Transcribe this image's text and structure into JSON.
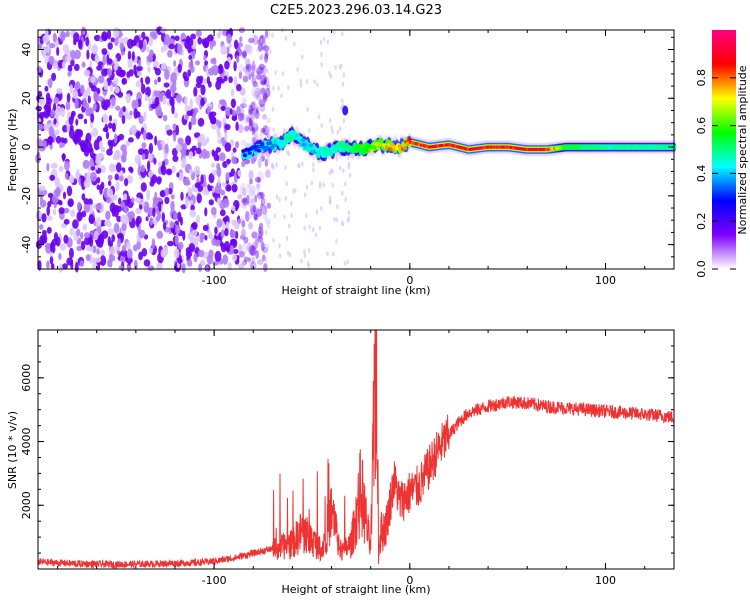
{
  "title": "C2E5.2023.296.03.14.G23",
  "chart_data": [
    {
      "type": "heatmap",
      "xlabel": "Height of straight line (km)",
      "ylabel": "Frequency (Hz)",
      "xlim": [
        -190,
        135
      ],
      "ylim": [
        -50,
        48
      ],
      "xticks": [
        -100,
        0,
        100
      ],
      "yticks": [
        -40,
        -20,
        0,
        20,
        40
      ],
      "grid": false,
      "colorbar": {
        "label": "Normalized spectral amplitude",
        "range": [
          0,
          1
        ],
        "ticks": [
          "0.0",
          "0.2",
          "0.4",
          "0.6",
          "0.8"
        ],
        "colors": [
          "#ffffff",
          "#7f00ff",
          "#0000ff",
          "#00ffff",
          "#00ff00",
          "#ffff00",
          "#ff0000",
          "#ff0080"
        ]
      },
      "description_points": {
        "noise_region_x": [
          -190,
          -82
        ],
        "signal_ridge": {
          "x": [
            -85,
            -75,
            -65,
            -60,
            -55,
            -45,
            -35,
            -25,
            -15,
            -5,
            0,
            10,
            20,
            30,
            40,
            50,
            60,
            70,
            80,
            90,
            100,
            110,
            120,
            135
          ],
          "freq": [
            -3,
            0,
            2,
            5,
            2,
            -3,
            0,
            -1,
            1,
            0,
            2,
            0,
            1,
            -1,
            0,
            0,
            -1,
            -1,
            0,
            0,
            0,
            0,
            0,
            0
          ],
          "amplitude": [
            0.3,
            0.35,
            0.45,
            0.5,
            0.4,
            0.45,
            0.5,
            0.6,
            0.75,
            0.85,
            0.9,
            0.95,
            0.95,
            0.95,
            0.95,
            0.95,
            0.95,
            0.95,
            0.6,
            0.55,
            0.5,
            0.5,
            0.5,
            0.5
          ]
        }
      }
    },
    {
      "type": "line",
      "xlabel": "Height of straight line (km)",
      "ylabel": "SNR (10 * v/v)",
      "xlim": [
        -190,
        135
      ],
      "ylim": [
        0,
        7500
      ],
      "xticks": [
        -100,
        0,
        100
      ],
      "yticks": [
        2000,
        4000,
        6000
      ],
      "grid": false,
      "color": "#ee3333",
      "series": [
        {
          "x": [
            -190,
            -170,
            -150,
            -130,
            -110,
            -100,
            -90,
            -80,
            -70,
            -60,
            -55,
            -50,
            -45,
            -40,
            -35,
            -30,
            -25,
            -20,
            -17,
            -16,
            -15,
            -12,
            -8,
            -5,
            0,
            5,
            10,
            15,
            20,
            25,
            30,
            40,
            50,
            60,
            70,
            80,
            90,
            100,
            110,
            120,
            130,
            135
          ],
          "y": [
            180,
            120,
            100,
            120,
            150,
            200,
            300,
            450,
            600,
            800,
            1200,
            900,
            600,
            1800,
            500,
            800,
            2500,
            600,
            7400,
            300,
            1100,
            1400,
            2800,
            2100,
            2400,
            2600,
            3200,
            3800,
            4200,
            4600,
            4900,
            5100,
            5250,
            5200,
            5100,
            5050,
            5000,
            4950,
            4900,
            4850,
            4800,
            4750
          ]
        }
      ]
    }
  ]
}
